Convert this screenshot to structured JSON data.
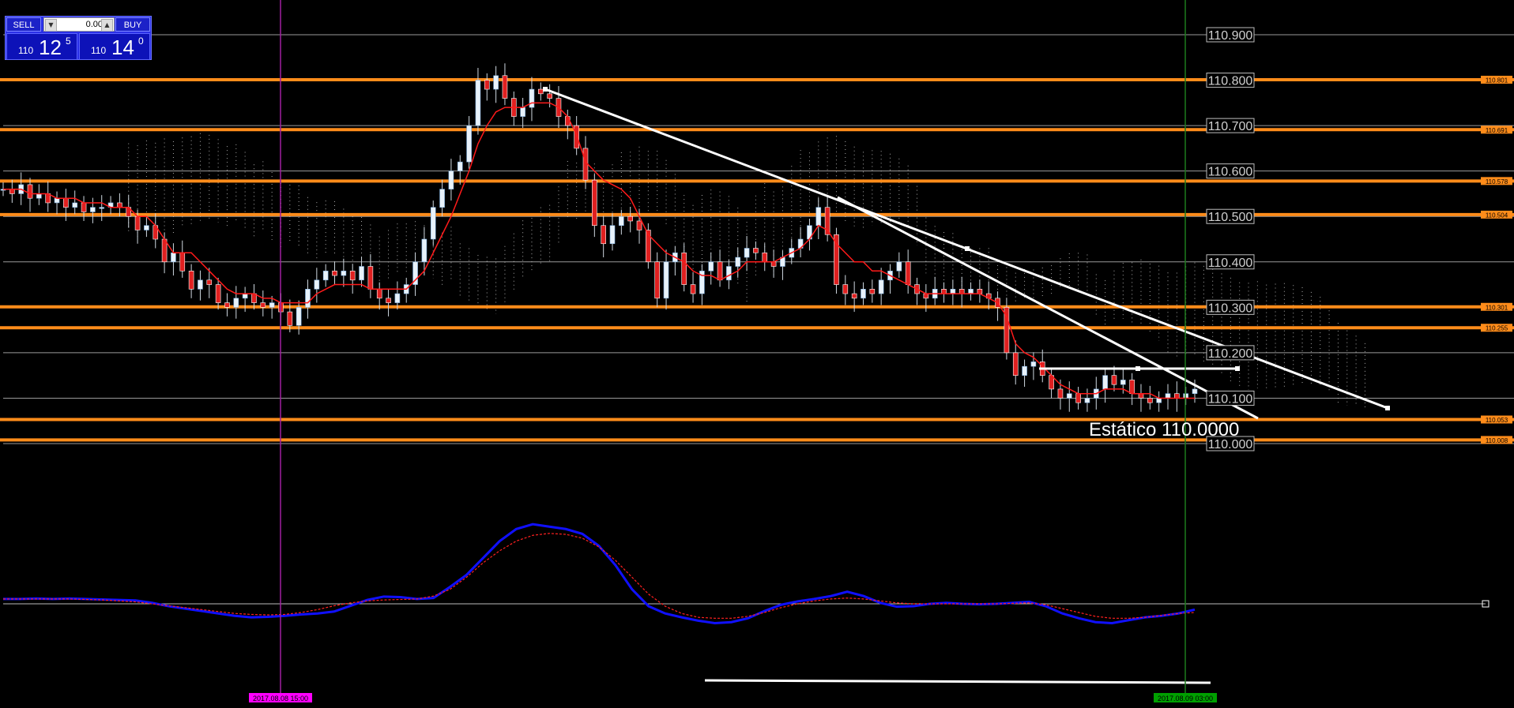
{
  "trade_panel": {
    "sell_label": "SELL",
    "buy_label": "BUY",
    "lot_value": "0.00",
    "bid": {
      "small": "110",
      "big": "12",
      "sup": "5"
    },
    "ask": {
      "small": "110",
      "big": "14",
      "sup": "0"
    }
  },
  "chart_data": [
    {
      "type": "candlestick",
      "symbol_scale_ylim": [
        109.96,
        110.98
      ],
      "grid": true,
      "price_axis_labels": [
        "110.900",
        "110.800",
        "110.700",
        "110.600",
        "110.500",
        "110.400",
        "110.300",
        "110.200",
        "110.100",
        "110.000"
      ],
      "horizontal_levels": [
        {
          "price": 110.801,
          "label": "110.801"
        },
        {
          "price": 110.691,
          "label": "110.691"
        },
        {
          "price": 110.578,
          "label": "110.578"
        },
        {
          "price": 110.504,
          "label": "110.504"
        },
        {
          "price": 110.301,
          "label": "110.301"
        },
        {
          "price": 110.255,
          "label": "110.255"
        },
        {
          "price": 110.053,
          "label": "110.053"
        },
        {
          "price": 110.008,
          "label": "110.008"
        }
      ],
      "level_color": "#ff8c1a",
      "annotation": "Estático 110.0000",
      "vertical_markers": [
        {
          "label": "2017.08.08 15:00",
          "color": "#a020a0",
          "label_bg": "#ff00ff"
        },
        {
          "label": "2017.08.09 03:00",
          "color": "#1e7a1e",
          "label_bg": "#00a000"
        }
      ],
      "close_series": [
        110.56,
        110.55,
        110.57,
        110.54,
        110.55,
        110.53,
        110.54,
        110.52,
        110.53,
        110.51,
        110.52,
        110.52,
        110.53,
        110.52,
        110.5,
        110.47,
        110.48,
        110.45,
        110.4,
        110.42,
        110.38,
        110.34,
        110.36,
        110.35,
        110.31,
        110.3,
        110.32,
        110.33,
        110.31,
        110.3,
        110.31,
        110.29,
        110.26,
        110.3,
        110.34,
        110.36,
        110.38,
        110.37,
        110.38,
        110.36,
        110.39,
        110.34,
        110.32,
        110.31,
        110.33,
        110.35,
        110.4,
        110.45,
        110.52,
        110.56,
        110.6,
        110.62,
        110.7,
        110.8,
        110.78,
        110.81,
        110.76,
        110.72,
        110.74,
        110.78,
        110.77,
        110.76,
        110.72,
        110.7,
        110.65,
        110.58,
        110.48,
        110.44,
        110.48,
        110.5,
        110.49,
        110.47,
        110.4,
        110.32,
        110.4,
        110.42,
        110.35,
        110.33,
        110.38,
        110.4,
        110.36,
        110.39,
        110.41,
        110.43,
        110.42,
        110.4,
        110.39,
        110.41,
        110.43,
        110.45,
        110.48,
        110.52,
        110.46,
        110.35,
        110.33,
        110.32,
        110.34,
        110.33,
        110.36,
        110.38,
        110.4,
        110.35,
        110.33,
        110.32,
        110.34,
        110.33,
        110.34,
        110.33,
        110.34,
        110.33,
        110.32,
        110.3,
        110.2,
        110.15,
        110.17,
        110.18,
        110.15,
        110.12,
        110.1,
        110.11,
        110.09,
        110.1,
        110.12,
        110.15,
        110.13,
        110.14,
        110.11,
        110.1,
        110.09,
        110.1,
        110.11,
        110.1,
        110.11,
        110.12
      ],
      "kijun_series": [
        110.56,
        110.56,
        110.56,
        110.55,
        110.55,
        110.55,
        110.54,
        110.54,
        110.54,
        110.53,
        110.53,
        110.53,
        110.52,
        110.52,
        110.52,
        110.5,
        110.5,
        110.48,
        110.45,
        110.42,
        110.42,
        110.42,
        110.4,
        110.38,
        110.36,
        110.34,
        110.33,
        110.33,
        110.33,
        110.32,
        110.32,
        110.31,
        110.31,
        110.31,
        110.31,
        110.33,
        110.34,
        110.35,
        110.35,
        110.35,
        110.35,
        110.34,
        110.34,
        110.34,
        110.34,
        110.34,
        110.36,
        110.38,
        110.42,
        110.46,
        110.5,
        110.55,
        110.6,
        110.66,
        110.7,
        110.73,
        110.74,
        110.74,
        110.74,
        110.75,
        110.75,
        110.75,
        110.74,
        110.72,
        110.68,
        110.62,
        110.6,
        110.58,
        110.57,
        110.56,
        110.54,
        110.5,
        110.46,
        110.44,
        110.42,
        110.41,
        110.4,
        110.38,
        110.37,
        110.37,
        110.36,
        110.37,
        110.38,
        110.4,
        110.4,
        110.4,
        110.4,
        110.41,
        110.42,
        110.43,
        110.45,
        110.48,
        110.47,
        110.44,
        110.42,
        110.4,
        110.4,
        110.38,
        110.38,
        110.37,
        110.36,
        110.35,
        110.34,
        110.33,
        110.33,
        110.33,
        110.33,
        110.33,
        110.33,
        110.33,
        110.32,
        110.31,
        110.28,
        110.22,
        110.2,
        110.19,
        110.17,
        110.15,
        110.13,
        110.12,
        110.11,
        110.11,
        110.11,
        110.12,
        110.12,
        110.12,
        110.11,
        110.11,
        110.11,
        110.1,
        110.1,
        110.1,
        110.1,
        110.1
      ]
    },
    {
      "type": "line",
      "panel": "oscillator",
      "series": [
        {
          "color": "#1010ff",
          "values": [
            0.1,
            0.1,
            0.11,
            0.1,
            0.11,
            0.1,
            0.09,
            0.08,
            0.07,
            0.02,
            -0.05,
            -0.1,
            -0.15,
            -0.2,
            -0.25,
            -0.28,
            -0.27,
            -0.25,
            -0.22,
            -0.2,
            -0.16,
            -0.04,
            0.08,
            0.15,
            0.14,
            0.1,
            0.12,
            0.35,
            0.6,
            0.95,
            1.3,
            1.55,
            1.65,
            1.6,
            1.55,
            1.45,
            1.2,
            0.8,
            0.3,
            -0.05,
            -0.2,
            -0.28,
            -0.35,
            -0.4,
            -0.38,
            -0.3,
            -0.15,
            -0.02,
            0.05,
            0.1,
            0.16,
            0.25,
            0.16,
            0.02,
            -0.06,
            -0.05,
            0.0,
            0.02,
            0.0,
            -0.01,
            0.0,
            0.02,
            0.04,
            -0.05,
            -0.2,
            -0.3,
            -0.38,
            -0.4,
            -0.34,
            -0.28,
            -0.25,
            -0.2,
            -0.12
          ]
        },
        {
          "color": "#ff2020",
          "values": [
            0.1,
            0.1,
            0.1,
            0.1,
            0.1,
            0.09,
            0.08,
            0.06,
            0.04,
            0.0,
            -0.04,
            -0.08,
            -0.12,
            -0.16,
            -0.2,
            -0.22,
            -0.23,
            -0.22,
            -0.18,
            -0.12,
            -0.04,
            0.02,
            0.06,
            0.08,
            0.09,
            0.1,
            0.16,
            0.3,
            0.55,
            0.85,
            1.1,
            1.3,
            1.42,
            1.46,
            1.44,
            1.36,
            1.18,
            0.9,
            0.55,
            0.2,
            -0.05,
            -0.2,
            -0.28,
            -0.3,
            -0.3,
            -0.26,
            -0.18,
            -0.08,
            0.0,
            0.06,
            0.1,
            0.12,
            0.1,
            0.06,
            0.02,
            0.0,
            0.0,
            0.0,
            0.0,
            0.0,
            0.0,
            0.01,
            0.02,
            -0.02,
            -0.1,
            -0.18,
            -0.26,
            -0.3,
            -0.3,
            -0.28,
            -0.24,
            -0.2,
            -0.18
          ]
        }
      ],
      "ylim": [
        -0.5,
        1.8
      ],
      "zero_line": 0
    }
  ]
}
